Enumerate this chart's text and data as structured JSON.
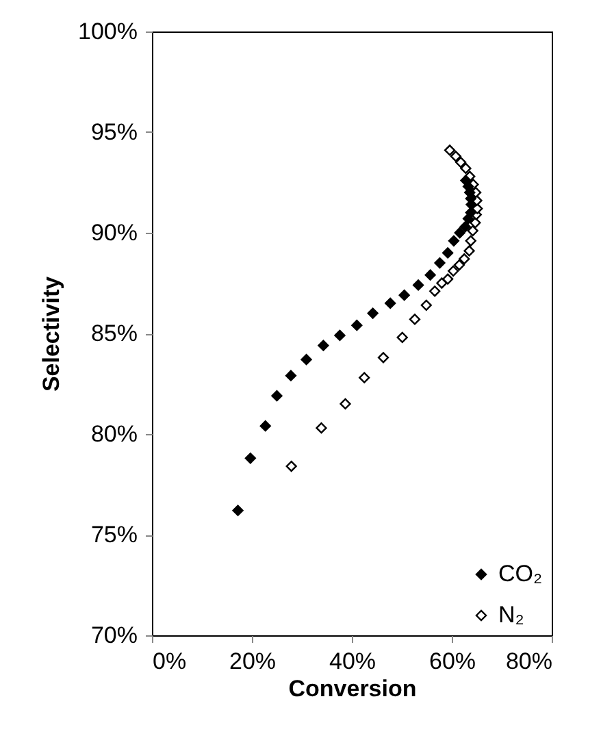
{
  "chart_data": {
    "type": "scatter",
    "xlabel": "Conversion",
    "ylabel": "Selectivity",
    "xlim": [
      0,
      80
    ],
    "ylim": [
      70,
      100
    ],
    "xticks": [
      {
        "value": 0,
        "label": "0%"
      },
      {
        "value": 20,
        "label": "20%"
      },
      {
        "value": 40,
        "label": "40%"
      },
      {
        "value": 60,
        "label": "60%"
      },
      {
        "value": 80,
        "label": "80%"
      }
    ],
    "yticks": [
      {
        "value": 70,
        "label": "70%"
      },
      {
        "value": 75,
        "label": "75%"
      },
      {
        "value": 80,
        "label": "80%"
      },
      {
        "value": 85,
        "label": "85%"
      },
      {
        "value": 90,
        "label": "90%"
      },
      {
        "value": 95,
        "label": "95%"
      },
      {
        "value": 100,
        "label": "100%"
      }
    ],
    "grid": false,
    "legend": "bottom right",
    "marker": "diamond",
    "series": [
      {
        "name": "CO₂",
        "color": "#000000",
        "x": [
          17.2,
          19.7,
          22.7,
          25.0,
          27.8,
          30.9,
          34.3,
          37.6,
          41.0,
          44.2,
          47.7,
          50.5,
          53.3,
          55.7,
          57.6,
          59.2,
          60.4,
          61.6,
          62.7,
          63.3,
          63.8,
          63.9,
          63.8,
          63.6,
          63.3,
          62.8
        ],
        "values": [
          76.2,
          78.8,
          80.4,
          81.9,
          82.9,
          83.7,
          84.4,
          84.9,
          85.4,
          86.0,
          86.5,
          86.9,
          87.4,
          87.9,
          88.5,
          89.0,
          89.6,
          90.0,
          90.3,
          90.7,
          91.0,
          91.4,
          91.7,
          92.0,
          92.3,
          92.6
        ]
      },
      {
        "name": "N₂",
        "color": "#ffffff",
        "x": [
          27.9,
          33.9,
          38.7,
          42.5,
          46.3,
          50.1,
          52.6,
          54.9,
          56.6,
          58.0,
          59.2,
          60.3,
          61.5,
          62.5,
          63.5,
          63.8,
          64.2,
          64.7,
          64.9,
          65.1,
          65.0,
          64.8,
          64.3,
          63.6,
          62.8,
          61.8,
          60.8,
          59.6
        ],
        "values": [
          78.4,
          80.3,
          81.5,
          82.8,
          83.8,
          84.8,
          85.7,
          86.4,
          87.1,
          87.5,
          87.7,
          88.1,
          88.4,
          88.7,
          89.1,
          89.6,
          90.1,
          90.5,
          90.9,
          91.2,
          91.6,
          92.0,
          92.4,
          92.8,
          93.2,
          93.5,
          93.8,
          94.1
        ]
      }
    ]
  }
}
